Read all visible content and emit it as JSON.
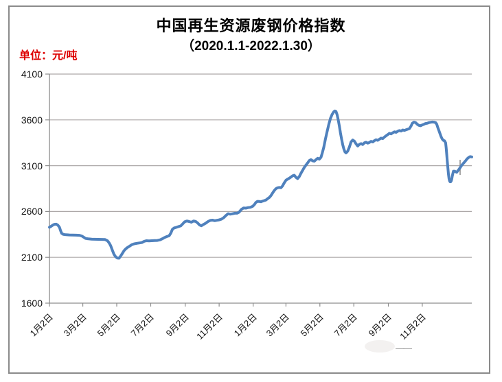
{
  "title": "中国再生资源废钢价格指数",
  "subtitle": "（2020.1.1-2022.1.30）",
  "unit_label": "单位：元/吨",
  "watermark": {
    "dash": "——"
  },
  "colors": {
    "line": "#4F81BD",
    "grid": "#aca7a7",
    "axis": "#8c8c8c",
    "frame": "#8a8a8a",
    "unit_label": "#dd0000",
    "text": "#111111"
  },
  "chart_data": {
    "type": "line",
    "title": "中国再生资源废钢价格指数（2020.1.1-2022.1.30）",
    "ylabel": "元/吨",
    "ylim": [
      1600,
      4100
    ],
    "yticks": [
      1600,
      2100,
      2600,
      3100,
      3600,
      4100
    ],
    "grid": true,
    "legend_position": "none",
    "x_axis": {
      "total_days": 759,
      "tick_days": [
        0,
        60,
        121,
        182,
        244,
        305,
        366,
        425,
        486,
        547,
        609,
        670
      ],
      "tick_labels": [
        "1月2日",
        "3月2日",
        "5月2日",
        "7月2日",
        "9月2日",
        "11月2日",
        "1月2日",
        "3月2日",
        "5月2日",
        "7月2日",
        "9月2日",
        "11月2日"
      ]
    },
    "series": [
      {
        "name": "废钢价格指数",
        "color": "#4F81BD",
        "points": [
          [
            0,
            2428
          ],
          [
            3,
            2438
          ],
          [
            6,
            2452
          ],
          [
            9,
            2460
          ],
          [
            12,
            2462
          ],
          [
            15,
            2452
          ],
          [
            18,
            2428
          ],
          [
            20,
            2392
          ],
          [
            22,
            2362
          ],
          [
            25,
            2350
          ],
          [
            30,
            2346
          ],
          [
            36,
            2344
          ],
          [
            42,
            2343
          ],
          [
            48,
            2342
          ],
          [
            54,
            2340
          ],
          [
            58,
            2333
          ],
          [
            62,
            2318
          ],
          [
            65,
            2306
          ],
          [
            70,
            2301
          ],
          [
            76,
            2298
          ],
          [
            82,
            2297
          ],
          [
            88,
            2296
          ],
          [
            94,
            2295
          ],
          [
            100,
            2294
          ],
          [
            104,
            2282
          ],
          [
            107,
            2260
          ],
          [
            110,
            2228
          ],
          [
            113,
            2178
          ],
          [
            116,
            2132
          ],
          [
            119,
            2106
          ],
          [
            122,
            2092
          ],
          [
            125,
            2090
          ],
          [
            128,
            2114
          ],
          [
            131,
            2142
          ],
          [
            134,
            2172
          ],
          [
            137,
            2192
          ],
          [
            140,
            2206
          ],
          [
            144,
            2222
          ],
          [
            148,
            2238
          ],
          [
            152,
            2247
          ],
          [
            157,
            2253
          ],
          [
            162,
            2257
          ],
          [
            166,
            2261
          ],
          [
            170,
            2274
          ],
          [
            174,
            2281
          ],
          [
            179,
            2279
          ],
          [
            184,
            2281
          ],
          [
            189,
            2283
          ],
          [
            194,
            2284
          ],
          [
            199,
            2291
          ],
          [
            203,
            2303
          ],
          [
            207,
            2316
          ],
          [
            211,
            2327
          ],
          [
            215,
            2334
          ],
          [
            218,
            2362
          ],
          [
            221,
            2406
          ],
          [
            224,
            2420
          ],
          [
            228,
            2427
          ],
          [
            232,
            2435
          ],
          [
            236,
            2443
          ],
          [
            240,
            2468
          ],
          [
            243,
            2488
          ],
          [
            247,
            2497
          ],
          [
            251,
            2491
          ],
          [
            255,
            2483
          ],
          [
            259,
            2497
          ],
          [
            263,
            2491
          ],
          [
            267,
            2471
          ],
          [
            270,
            2452
          ],
          [
            273,
            2444
          ],
          [
            277,
            2459
          ],
          [
            281,
            2473
          ],
          [
            285,
            2491
          ],
          [
            289,
            2503
          ],
          [
            293,
            2506
          ],
          [
            297,
            2500
          ],
          [
            301,
            2504
          ],
          [
            305,
            2509
          ],
          [
            309,
            2516
          ],
          [
            313,
            2531
          ],
          [
            317,
            2556
          ],
          [
            321,
            2576
          ],
          [
            325,
            2571
          ],
          [
            329,
            2575
          ],
          [
            333,
            2581
          ],
          [
            337,
            2581
          ],
          [
            341,
            2593
          ],
          [
            345,
            2623
          ],
          [
            349,
            2639
          ],
          [
            353,
            2637
          ],
          [
            357,
            2643
          ],
          [
            361,
            2646
          ],
          [
            365,
            2656
          ],
          [
            368,
            2673
          ],
          [
            371,
            2699
          ],
          [
            374,
            2711
          ],
          [
            377,
            2709
          ],
          [
            380,
            2706
          ],
          [
            383,
            2713
          ],
          [
            386,
            2719
          ],
          [
            389,
            2725
          ],
          [
            392,
            2739
          ],
          [
            395,
            2753
          ],
          [
            398,
            2773
          ],
          [
            401,
            2801
          ],
          [
            404,
            2829
          ],
          [
            407,
            2849
          ],
          [
            410,
            2859
          ],
          [
            413,
            2863
          ],
          [
            416,
            2859
          ],
          [
            419,
            2879
          ],
          [
            422,
            2913
          ],
          [
            425,
            2941
          ],
          [
            428,
            2953
          ],
          [
            431,
            2963
          ],
          [
            434,
            2976
          ],
          [
            437,
            2989
          ],
          [
            440,
            2996
          ],
          [
            443,
            2973
          ],
          [
            446,
            2959
          ],
          [
            449,
            2981
          ],
          [
            452,
            3016
          ],
          [
            455,
            3049
          ],
          [
            458,
            3081
          ],
          [
            461,
            3106
          ],
          [
            464,
            3131
          ],
          [
            467,
            3156
          ],
          [
            470,
            3166
          ],
          [
            473,
            3153
          ],
          [
            476,
            3149
          ],
          [
            479,
            3166
          ],
          [
            482,
            3181
          ],
          [
            485,
            3171
          ],
          [
            488,
            3191
          ],
          [
            490,
            3231
          ],
          [
            493,
            3301
          ],
          [
            496,
            3391
          ],
          [
            499,
            3471
          ],
          [
            502,
            3551
          ],
          [
            505,
            3616
          ],
          [
            508,
            3659
          ],
          [
            511,
            3689
          ],
          [
            513,
            3697
          ],
          [
            515,
            3691
          ],
          [
            517,
            3656
          ],
          [
            519,
            3601
          ],
          [
            521,
            3531
          ],
          [
            523,
            3456
          ],
          [
            525,
            3391
          ],
          [
            527,
            3331
          ],
          [
            529,
            3286
          ],
          [
            531,
            3251
          ],
          [
            533,
            3239
          ],
          [
            536,
            3258
          ],
          [
            539,
            3302
          ],
          [
            542,
            3360
          ],
          [
            545,
            3380
          ],
          [
            548,
            3368
          ],
          [
            551,
            3338
          ],
          [
            554,
            3315
          ],
          [
            557,
            3333
          ],
          [
            560,
            3341
          ],
          [
            563,
            3331
          ],
          [
            566,
            3349
          ],
          [
            569,
            3356
          ],
          [
            572,
            3346
          ],
          [
            575,
            3353
          ],
          [
            578,
            3366
          ],
          [
            581,
            3359
          ],
          [
            584,
            3373
          ],
          [
            587,
            3383
          ],
          [
            590,
            3377
          ],
          [
            593,
            3389
          ],
          [
            596,
            3401
          ],
          [
            599,
            3396
          ],
          [
            602,
            3413
          ],
          [
            605,
            3426
          ],
          [
            608,
            3439
          ],
          [
            611,
            3453
          ],
          [
            614,
            3447
          ],
          [
            617,
            3459
          ],
          [
            620,
            3470
          ],
          [
            623,
            3464
          ],
          [
            626,
            3476
          ],
          [
            629,
            3483
          ],
          [
            632,
            3478
          ],
          [
            635,
            3490
          ],
          [
            638,
            3485
          ],
          [
            641,
            3492
          ],
          [
            644,
            3498
          ],
          [
            647,
            3505
          ],
          [
            650,
            3535
          ],
          [
            652,
            3562
          ],
          [
            655,
            3575
          ],
          [
            658,
            3570
          ],
          [
            661,
            3552
          ],
          [
            664,
            3540
          ],
          [
            667,
            3536
          ],
          [
            670,
            3545
          ],
          [
            673,
            3552
          ],
          [
            676,
            3560
          ],
          [
            679,
            3563
          ],
          [
            682,
            3570
          ],
          [
            685,
            3574
          ],
          [
            688,
            3577
          ],
          [
            691,
            3575
          ],
          [
            694,
            3570
          ],
          [
            696,
            3552
          ],
          [
            698,
            3515
          ],
          [
            700,
            3482
          ],
          [
            702,
            3448
          ],
          [
            704,
            3415
          ],
          [
            706,
            3390
          ],
          [
            708,
            3376
          ],
          [
            710,
            3372
          ],
          [
            712,
            3350
          ],
          [
            713,
            3295
          ],
          [
            714,
            3225
          ],
          [
            715,
            3150
          ],
          [
            716,
            3075
          ],
          [
            717,
            3010
          ],
          [
            718,
            2962
          ],
          [
            719,
            2936
          ],
          [
            720,
            2925
          ],
          [
            721,
            2924
          ],
          [
            722,
            2933
          ],
          [
            723,
            2952
          ],
          [
            724,
            2986
          ],
          [
            725,
            3016
          ],
          [
            726,
            3040
          ],
          [
            728,
            3040
          ],
          [
            730,
            3034
          ],
          [
            732,
            3028
          ],
          [
            734,
            3044
          ],
          [
            736,
            3060
          ],
          [
            738,
            3078
          ],
          [
            740,
            3096
          ],
          [
            742,
            3112
          ],
          [
            744,
            3126
          ],
          [
            746,
            3140
          ],
          [
            748,
            3155
          ],
          [
            750,
            3170
          ],
          [
            752,
            3182
          ],
          [
            754,
            3192
          ],
          [
            756,
            3199
          ],
          [
            759,
            3196
          ]
        ]
      }
    ]
  }
}
